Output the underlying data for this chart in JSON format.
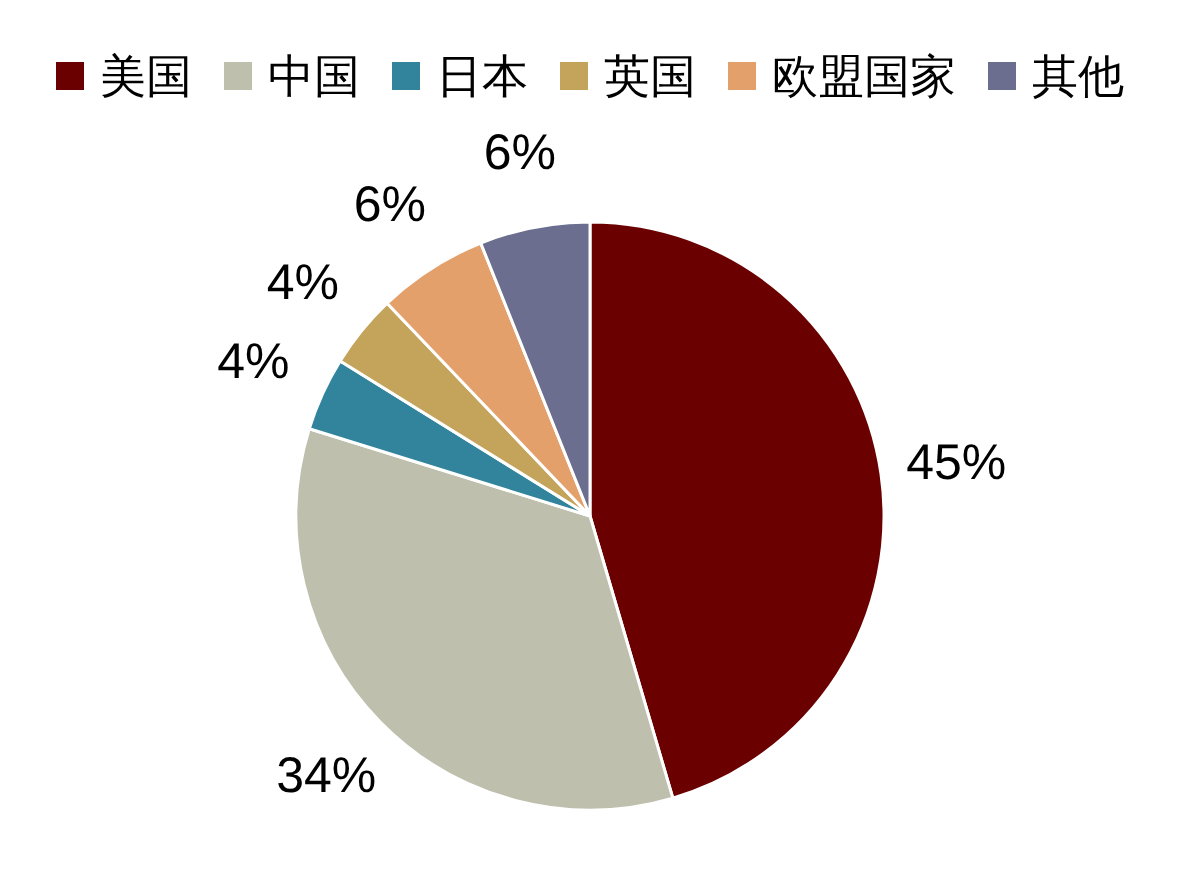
{
  "chart_data": {
    "type": "pie",
    "categories": [
      "美国",
      "中国",
      "日本",
      "英国",
      "欧盟国家",
      "其他"
    ],
    "values": [
      45,
      34,
      4,
      4,
      6,
      6
    ],
    "colors": [
      "#6b0000",
      "#bfbfae",
      "#31849b",
      "#c4a35a",
      "#e3a06b",
      "#6b6e8f"
    ],
    "value_labels": [
      "45%",
      "34%",
      "4%",
      "4%",
      "6%",
      "6%"
    ],
    "legend": "top"
  }
}
